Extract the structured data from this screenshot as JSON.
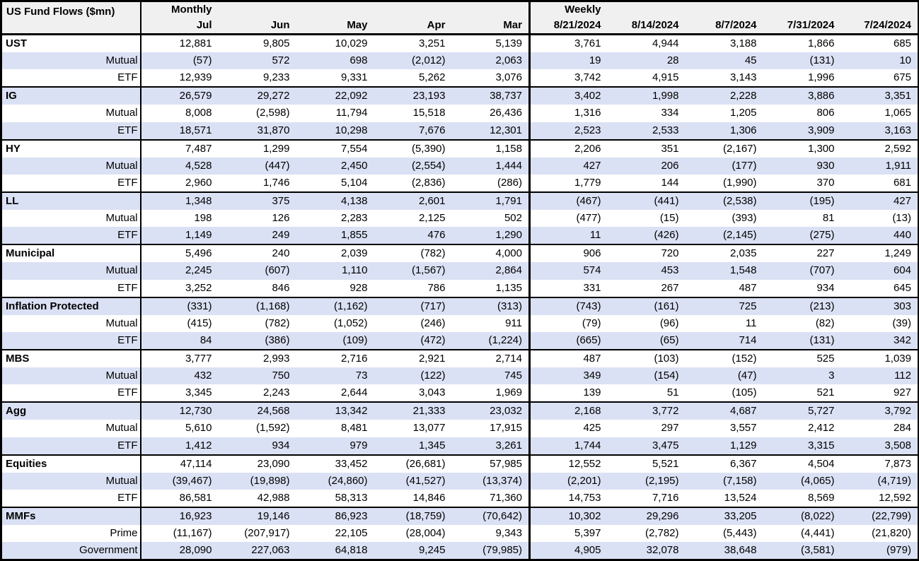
{
  "colors": {
    "band_blue": "#dbe1f4",
    "header_gray": "#f0f0f0",
    "border_black": "#000000",
    "text_black": "#000000"
  },
  "chart_data": {
    "type": "table",
    "title": "US Fund Flows ($mn)",
    "sections": [
      {
        "label": "Monthly",
        "columns": [
          "Jul",
          "Jun",
          "May",
          "Apr",
          "Mar"
        ]
      },
      {
        "label": "Weekly",
        "columns": [
          "8/21/2024",
          "8/14/2024",
          "8/7/2024",
          "7/31/2024",
          "7/24/2024"
        ]
      }
    ],
    "row_groups": [
      {
        "label": "UST",
        "rows": [
          {
            "label": "UST",
            "monthly": [
              "12,881",
              "9,805",
              "10,029",
              "3,251",
              "5,139"
            ],
            "weekly": [
              "3,761",
              "4,944",
              "3,188",
              "1,866",
              "685"
            ]
          },
          {
            "label": "Mutual",
            "monthly": [
              "(57)",
              "572",
              "698",
              "(2,012)",
              "2,063"
            ],
            "weekly": [
              "19",
              "28",
              "45",
              "(131)",
              "10"
            ]
          },
          {
            "label": "ETF",
            "monthly": [
              "12,939",
              "9,233",
              "9,331",
              "5,262",
              "3,076"
            ],
            "weekly": [
              "3,742",
              "4,915",
              "3,143",
              "1,996",
              "675"
            ]
          }
        ]
      },
      {
        "label": "IG",
        "rows": [
          {
            "label": "IG",
            "monthly": [
              "26,579",
              "29,272",
              "22,092",
              "23,193",
              "38,737"
            ],
            "weekly": [
              "3,402",
              "1,998",
              "2,228",
              "3,886",
              "3,351"
            ]
          },
          {
            "label": "Mutual",
            "monthly": [
              "8,008",
              "(2,598)",
              "11,794",
              "15,518",
              "26,436"
            ],
            "weekly": [
              "1,316",
              "334",
              "1,205",
              "806",
              "1,065"
            ]
          },
          {
            "label": "ETF",
            "monthly": [
              "18,571",
              "31,870",
              "10,298",
              "7,676",
              "12,301"
            ],
            "weekly": [
              "2,523",
              "2,533",
              "1,306",
              "3,909",
              "3,163"
            ]
          }
        ]
      },
      {
        "label": "HY",
        "rows": [
          {
            "label": "HY",
            "monthly": [
              "7,487",
              "1,299",
              "7,554",
              "(5,390)",
              "1,158"
            ],
            "weekly": [
              "2,206",
              "351",
              "(2,167)",
              "1,300",
              "2,592"
            ]
          },
          {
            "label": "Mutual",
            "monthly": [
              "4,528",
              "(447)",
              "2,450",
              "(2,554)",
              "1,444"
            ],
            "weekly": [
              "427",
              "206",
              "(177)",
              "930",
              "1,911"
            ]
          },
          {
            "label": "ETF",
            "monthly": [
              "2,960",
              "1,746",
              "5,104",
              "(2,836)",
              "(286)"
            ],
            "weekly": [
              "1,779",
              "144",
              "(1,990)",
              "370",
              "681"
            ]
          }
        ]
      },
      {
        "label": "LL",
        "rows": [
          {
            "label": "LL",
            "monthly": [
              "1,348",
              "375",
              "4,138",
              "2,601",
              "1,791"
            ],
            "weekly": [
              "(467)",
              "(441)",
              "(2,538)",
              "(195)",
              "427"
            ]
          },
          {
            "label": "Mutual",
            "monthly": [
              "198",
              "126",
              "2,283",
              "2,125",
              "502"
            ],
            "weekly": [
              "(477)",
              "(15)",
              "(393)",
              "81",
              "(13)"
            ]
          },
          {
            "label": "ETF",
            "monthly": [
              "1,149",
              "249",
              "1,855",
              "476",
              "1,290"
            ],
            "weekly": [
              "11",
              "(426)",
              "(2,145)",
              "(275)",
              "440"
            ]
          }
        ]
      },
      {
        "label": "Municipal",
        "rows": [
          {
            "label": "Municipal",
            "monthly": [
              "5,496",
              "240",
              "2,039",
              "(782)",
              "4,000"
            ],
            "weekly": [
              "906",
              "720",
              "2,035",
              "227",
              "1,249"
            ]
          },
          {
            "label": "Mutual",
            "monthly": [
              "2,245",
              "(607)",
              "1,110",
              "(1,567)",
              "2,864"
            ],
            "weekly": [
              "574",
              "453",
              "1,548",
              "(707)",
              "604"
            ]
          },
          {
            "label": "ETF",
            "monthly": [
              "3,252",
              "846",
              "928",
              "786",
              "1,135"
            ],
            "weekly": [
              "331",
              "267",
              "487",
              "934",
              "645"
            ]
          }
        ]
      },
      {
        "label": "Inflation Protected",
        "rows": [
          {
            "label": "Inflation Protected",
            "monthly": [
              "(331)",
              "(1,168)",
              "(1,162)",
              "(717)",
              "(313)"
            ],
            "weekly": [
              "(743)",
              "(161)",
              "725",
              "(213)",
              "303"
            ]
          },
          {
            "label": "Mutual",
            "monthly": [
              "(415)",
              "(782)",
              "(1,052)",
              "(246)",
              "911"
            ],
            "weekly": [
              "(79)",
              "(96)",
              "11",
              "(82)",
              "(39)"
            ]
          },
          {
            "label": "ETF",
            "monthly": [
              "84",
              "(386)",
              "(109)",
              "(472)",
              "(1,224)"
            ],
            "weekly": [
              "(665)",
              "(65)",
              "714",
              "(131)",
              "342"
            ]
          }
        ]
      },
      {
        "label": "MBS",
        "rows": [
          {
            "label": "MBS",
            "monthly": [
              "3,777",
              "2,993",
              "2,716",
              "2,921",
              "2,714"
            ],
            "weekly": [
              "487",
              "(103)",
              "(152)",
              "525",
              "1,039"
            ]
          },
          {
            "label": "Mutual",
            "monthly": [
              "432",
              "750",
              "73",
              "(122)",
              "745"
            ],
            "weekly": [
              "349",
              "(154)",
              "(47)",
              "3",
              "112"
            ]
          },
          {
            "label": "ETF",
            "monthly": [
              "3,345",
              "2,243",
              "2,644",
              "3,043",
              "1,969"
            ],
            "weekly": [
              "139",
              "51",
              "(105)",
              "521",
              "927"
            ]
          }
        ]
      },
      {
        "label": "Agg",
        "rows": [
          {
            "label": "Agg",
            "monthly": [
              "12,730",
              "24,568",
              "13,342",
              "21,333",
              "23,032"
            ],
            "weekly": [
              "2,168",
              "3,772",
              "4,687",
              "5,727",
              "3,792"
            ]
          },
          {
            "label": "Mutual",
            "monthly": [
              "5,610",
              "(1,592)",
              "8,481",
              "13,077",
              "17,915"
            ],
            "weekly": [
              "425",
              "297",
              "3,557",
              "2,412",
              "284"
            ]
          },
          {
            "label": "ETF",
            "monthly": [
              "1,412",
              "934",
              "979",
              "1,345",
              "3,261"
            ],
            "weekly": [
              "1,744",
              "3,475",
              "1,129",
              "3,315",
              "3,508"
            ]
          }
        ]
      },
      {
        "label": "Equities",
        "rows": [
          {
            "label": "Equities",
            "monthly": [
              "47,114",
              "23,090",
              "33,452",
              "(26,681)",
              "57,985"
            ],
            "weekly": [
              "12,552",
              "5,521",
              "6,367",
              "4,504",
              "7,873"
            ]
          },
          {
            "label": "Mutual",
            "monthly": [
              "(39,467)",
              "(19,898)",
              "(24,860)",
              "(41,527)",
              "(13,374)"
            ],
            "weekly": [
              "(2,201)",
              "(2,195)",
              "(7,158)",
              "(4,065)",
              "(4,719)"
            ]
          },
          {
            "label": "ETF",
            "monthly": [
              "86,581",
              "42,988",
              "58,313",
              "14,846",
              "71,360"
            ],
            "weekly": [
              "14,753",
              "7,716",
              "13,524",
              "8,569",
              "12,592"
            ]
          }
        ]
      },
      {
        "label": "MMFs",
        "rows": [
          {
            "label": "MMFs",
            "monthly": [
              "16,923",
              "19,146",
              "86,923",
              "(18,759)",
              "(70,642)"
            ],
            "weekly": [
              "10,302",
              "29,296",
              "33,205",
              "(8,022)",
              "(22,799)"
            ]
          },
          {
            "label": "Prime",
            "monthly": [
              "(11,167)",
              "(207,917)",
              "22,105",
              "(28,004)",
              "9,343"
            ],
            "weekly": [
              "5,397",
              "(2,782)",
              "(5,443)",
              "(4,441)",
              "(21,820)"
            ]
          },
          {
            "label": "Government",
            "monthly": [
              "28,090",
              "227,063",
              "64,818",
              "9,245",
              "(79,985)"
            ],
            "weekly": [
              "4,905",
              "32,078",
              "38,648",
              "(3,581)",
              "(979)"
            ]
          }
        ]
      }
    ]
  }
}
